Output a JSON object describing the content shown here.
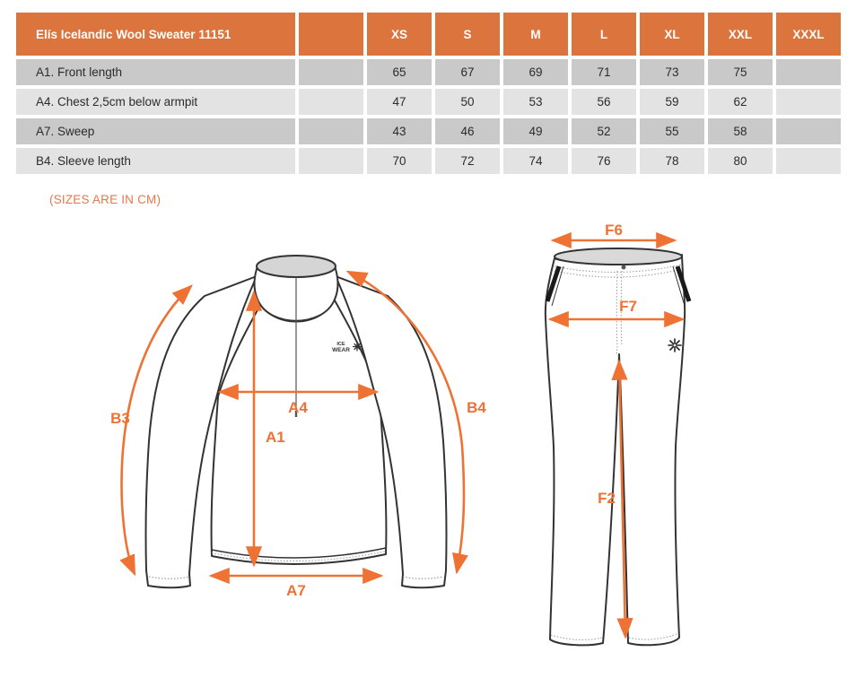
{
  "table": {
    "title": "Elís Icelandic Wool Sweater 11151",
    "columns": [
      "XS",
      "S",
      "M",
      "L",
      "XL",
      "XXL",
      "XXXL"
    ],
    "rows": [
      {
        "label": "A1. Front length",
        "values": [
          "65",
          "67",
          "69",
          "71",
          "73",
          "75",
          ""
        ]
      },
      {
        "label": "A4. Chest 2,5cm below armpit",
        "values": [
          "47",
          "50",
          "53",
          "56",
          "59",
          "62",
          ""
        ]
      },
      {
        "label": "A7. Sweep",
        "values": [
          "43",
          "46",
          "49",
          "52",
          "55",
          "58",
          ""
        ]
      },
      {
        "label": "B4. Sleeve length",
        "values": [
          "70",
          "72",
          "74",
          "76",
          "78",
          "80",
          ""
        ]
      }
    ]
  },
  "note": "(SIZES ARE IN CM)",
  "diagrams": {
    "sweater": {
      "labels": {
        "b3": "B3",
        "a4": "A4",
        "a1": "A1",
        "b4": "B4",
        "a7": "A7"
      },
      "logo": {
        "line1": "ICE",
        "line2": "WEAR"
      }
    },
    "pants": {
      "labels": {
        "f6": "F6",
        "f7": "F7",
        "f2": "F2"
      }
    }
  },
  "colors": {
    "table_orange": "#dc743e",
    "arrow_orange": "#ee7233",
    "note_orange": "#e8764b",
    "row_dark": "#c9c9c9",
    "row_light": "#e3e3e3",
    "outline": "#333333",
    "collar_fill": "#d5d5d5"
  }
}
